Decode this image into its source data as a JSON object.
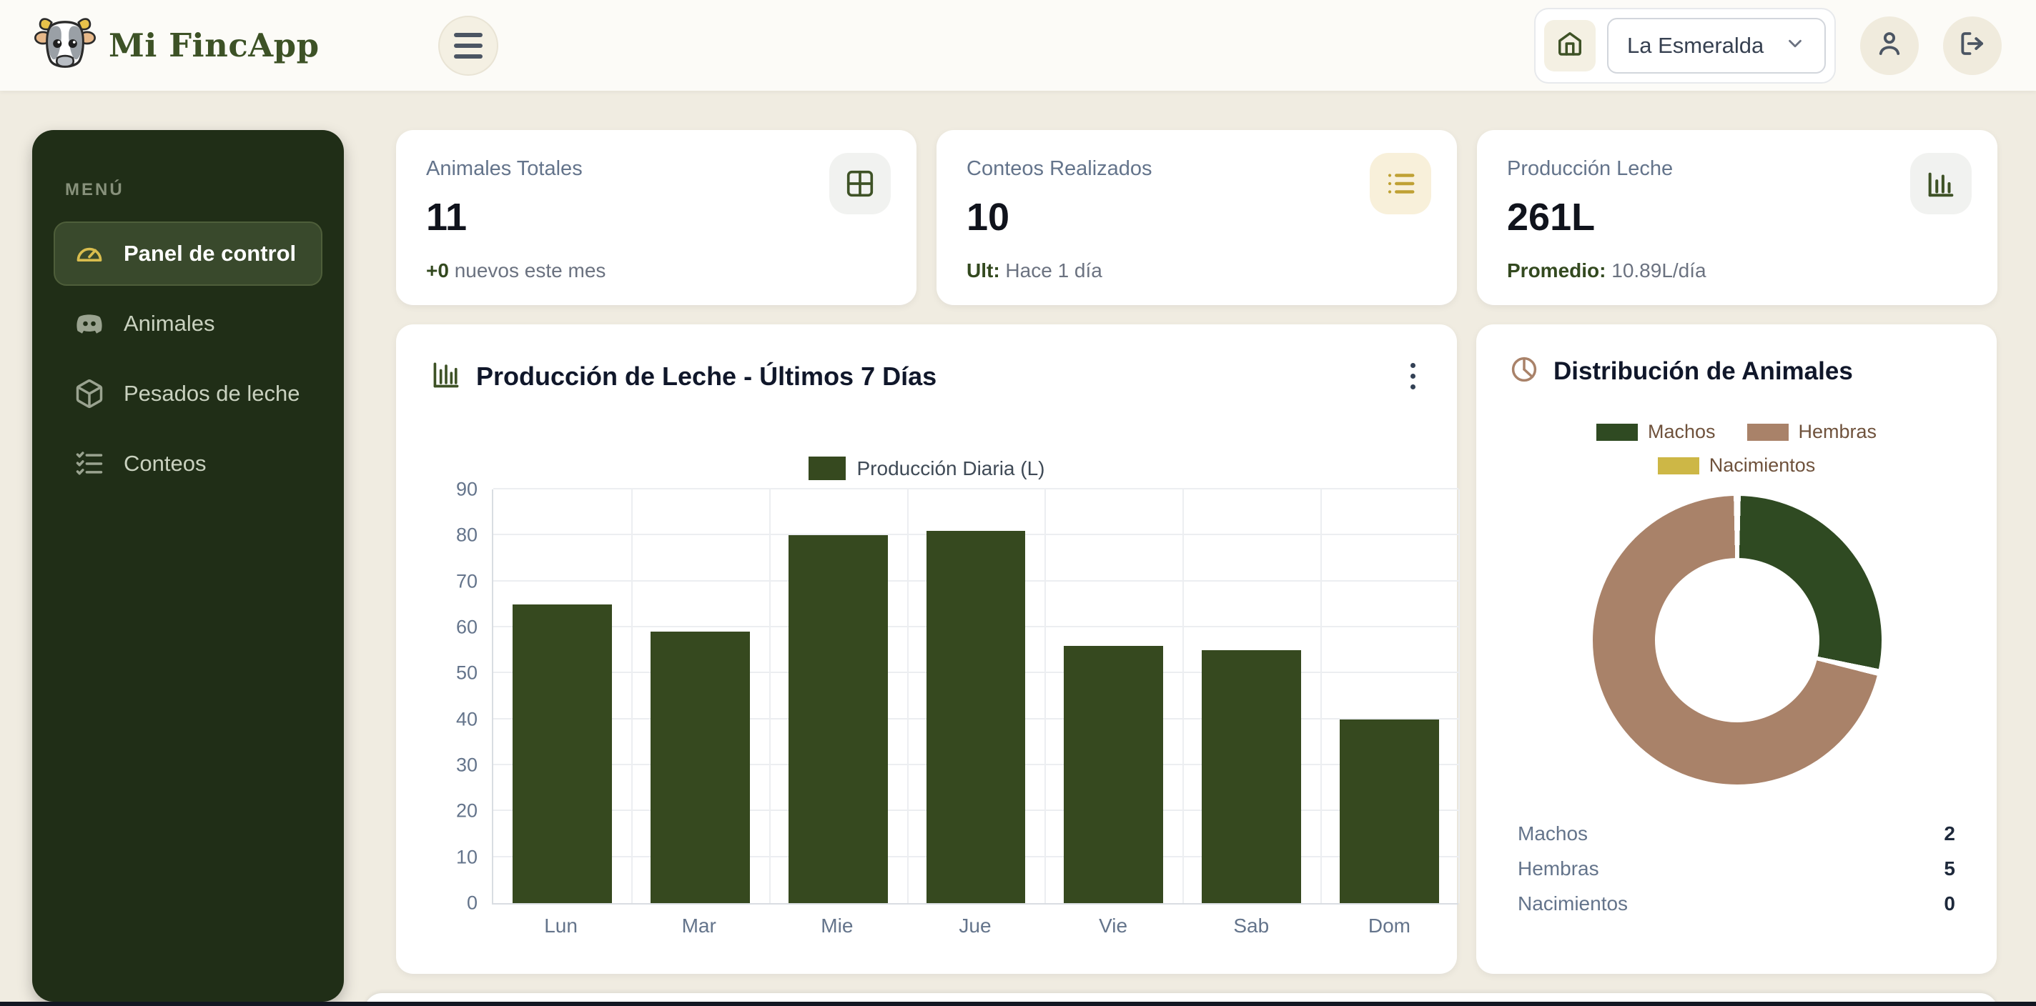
{
  "app": {
    "title": "Mi FincApp"
  },
  "header": {
    "farm_selector": {
      "value": "La Esmeralda"
    }
  },
  "sidebar": {
    "menu_label": "MENÚ",
    "items": [
      {
        "label": "Panel de control",
        "icon": "gauge-icon",
        "active": true
      },
      {
        "label": "Animales",
        "icon": "animals-icon",
        "active": false
      },
      {
        "label": "Pesados de leche",
        "icon": "cube-icon",
        "active": false
      },
      {
        "label": "Conteos",
        "icon": "checklist-icon",
        "active": false
      }
    ]
  },
  "stats": [
    {
      "title": "Animales Totales",
      "value": "11",
      "sub_prefix": "+0",
      "sub_text": " nuevos este mes",
      "icon": "grid-icon"
    },
    {
      "title": "Conteos Realizados",
      "value": "10",
      "sub_prefix": "Ult:",
      "sub_text": " Hace 1 día",
      "icon": "list-icon"
    },
    {
      "title": "Producción Leche",
      "value": "261L",
      "sub_prefix": "Promedio:",
      "sub_text": " 10.89L/día",
      "icon": "bar-chart-icon"
    }
  ],
  "chart_data": [
    {
      "type": "bar",
      "title": "Producción de Leche - Últimos 7 Días",
      "legend": "Producción Diaria (L)",
      "categories": [
        "Lun",
        "Mar",
        "Mie",
        "Jue",
        "Vie",
        "Sab",
        "Dom"
      ],
      "values": [
        65,
        59,
        80,
        81,
        56,
        55,
        40
      ],
      "ylim": [
        0,
        90
      ],
      "yticks": [
        0,
        10,
        20,
        30,
        40,
        50,
        60,
        70,
        80,
        90
      ],
      "bar_color": "#36491f",
      "grid": true,
      "legend_position": "top"
    },
    {
      "type": "pie",
      "subtype": "donut",
      "title": "Distribución de Animales",
      "labels": [
        "Machos",
        "Hembras",
        "Nacimientos"
      ],
      "values": [
        2,
        5,
        0
      ],
      "colors": [
        "#2f4a22",
        "#a98269",
        "#cdb746"
      ],
      "legend_position": "top"
    }
  ],
  "colors": {
    "accent_green": "#3d5226",
    "sidebar_bg": "#202e17",
    "active_item_bg": "#39492c",
    "gold": "#d9bd4e",
    "brown": "#a98269",
    "page_bg": "#f0ece1",
    "card_bg": "#ffffff"
  }
}
